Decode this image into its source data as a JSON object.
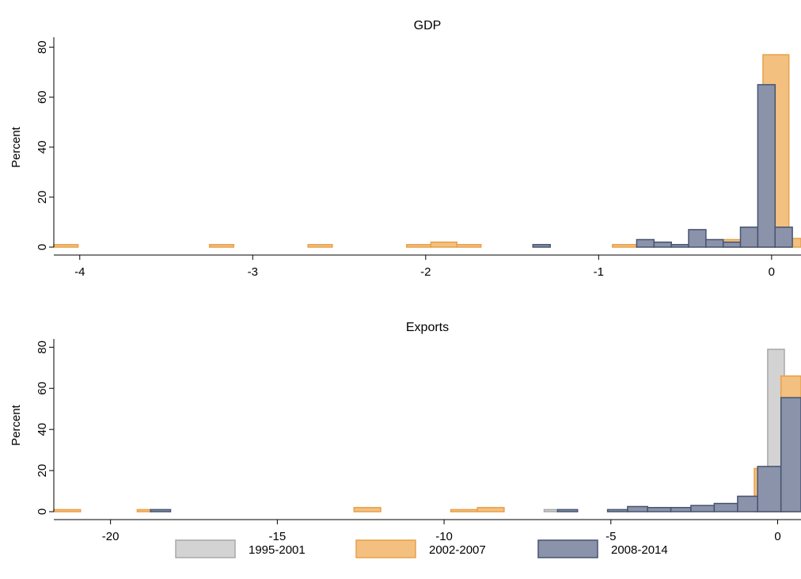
{
  "colors": {
    "1995-2001": {
      "fill": "#d3d3d3",
      "stroke": "#a8a8a8"
    },
    "2002-2007": {
      "fill": "#f3c07f",
      "stroke": "#e8a04a"
    },
    "2008-2014": {
      "fill": "#8a93aa",
      "stroke": "#465470"
    }
  },
  "legend": [
    "1995-2001",
    "2002-2007",
    "2008-2014"
  ],
  "chart_data": [
    {
      "type": "bar",
      "subtype": "histogram",
      "title": "GDP",
      "xlabel": "",
      "ylabel": "Percent",
      "xlim": [
        -4.15,
        0.17
      ],
      "ylim": [
        0,
        84
      ],
      "xticks": [
        -4,
        -3,
        -2,
        -1,
        0
      ],
      "yticks": [
        0,
        20,
        40,
        60,
        80
      ],
      "grid": false,
      "series": [
        {
          "name": "2002-2007",
          "bins": [
            {
              "x0": -4.15,
              "x1": -4.01,
              "y": 1
            },
            {
              "x0": -3.25,
              "x1": -3.11,
              "y": 1
            },
            {
              "x0": -2.68,
              "x1": -2.54,
              "y": 1
            },
            {
              "x0": -2.11,
              "x1": -1.97,
              "y": 1
            },
            {
              "x0": -1.97,
              "x1": -1.82,
              "y": 2
            },
            {
              "x0": -1.82,
              "x1": -1.68,
              "y": 1
            },
            {
              "x0": -0.92,
              "x1": -0.78,
              "y": 1
            },
            {
              "x0": -0.28,
              "x1": -0.17,
              "y": 3
            },
            {
              "x0": -0.17,
              "x1": -0.05,
              "y": 7.5
            },
            {
              "x0": -0.05,
              "x1": 0.1,
              "y": 77
            },
            {
              "x0": 0.1,
              "x1": 0.17,
              "y": 3.5
            }
          ]
        },
        {
          "name": "2008-2014",
          "bins": [
            {
              "x0": -1.38,
              "x1": -1.28,
              "y": 1
            },
            {
              "x0": -0.78,
              "x1": -0.68,
              "y": 3
            },
            {
              "x0": -0.68,
              "x1": -0.58,
              "y": 2
            },
            {
              "x0": -0.58,
              "x1": -0.48,
              "y": 1
            },
            {
              "x0": -0.48,
              "x1": -0.38,
              "y": 7
            },
            {
              "x0": -0.38,
              "x1": -0.28,
              "y": 3
            },
            {
              "x0": -0.28,
              "x1": -0.18,
              "y": 2
            },
            {
              "x0": -0.18,
              "x1": -0.08,
              "y": 8
            },
            {
              "x0": -0.08,
              "x1": 0.02,
              "y": 65
            },
            {
              "x0": 0.02,
              "x1": 0.12,
              "y": 8
            }
          ]
        }
      ]
    },
    {
      "type": "bar",
      "subtype": "histogram",
      "title": "Exports",
      "xlabel": "",
      "ylabel": "Percent",
      "xlim": [
        -21.7,
        0.7
      ],
      "ylim": [
        0,
        84
      ],
      "xticks": [
        -20,
        -15,
        -10,
        -5,
        0
      ],
      "yticks": [
        0,
        20,
        40,
        60,
        80
      ],
      "grid": false,
      "series": [
        {
          "name": "1995-2001",
          "bins": [
            {
              "x0": -7,
              "x1": -6.6,
              "y": 1
            },
            {
              "x0": -0.3,
              "x1": 0.2,
              "y": 79
            }
          ]
        },
        {
          "name": "2002-2007",
          "bins": [
            {
              "x0": -21.7,
              "x1": -20.9,
              "y": 1
            },
            {
              "x0": -19.2,
              "x1": -18.8,
              "y": 1
            },
            {
              "x0": -12.7,
              "x1": -11.9,
              "y": 2
            },
            {
              "x0": -9.8,
              "x1": -9.0,
              "y": 1
            },
            {
              "x0": -9.0,
              "x1": -8.2,
              "y": 2
            },
            {
              "x0": -0.7,
              "x1": -0.3,
              "y": 21
            },
            {
              "x0": 0.1,
              "x1": 0.7,
              "y": 66
            }
          ]
        },
        {
          "name": "2008-2014",
          "bins": [
            {
              "x0": -18.8,
              "x1": -18.2,
              "y": 1
            },
            {
              "x0": -6.6,
              "x1": -6.0,
              "y": 1
            },
            {
              "x0": -5.1,
              "x1": -4.5,
              "y": 1
            },
            {
              "x0": -4.5,
              "x1": -3.9,
              "y": 2.5
            },
            {
              "x0": -3.9,
              "x1": -3.2,
              "y": 2
            },
            {
              "x0": -3.2,
              "x1": -2.6,
              "y": 2
            },
            {
              "x0": -2.6,
              "x1": -1.9,
              "y": 3
            },
            {
              "x0": -1.9,
              "x1": -1.2,
              "y": 4
            },
            {
              "x0": -1.2,
              "x1": -0.6,
              "y": 7.5
            },
            {
              "x0": -0.6,
              "x1": 0.1,
              "y": 22
            },
            {
              "x0": 0.1,
              "x1": 0.7,
              "y": 55.5
            }
          ]
        }
      ]
    }
  ]
}
